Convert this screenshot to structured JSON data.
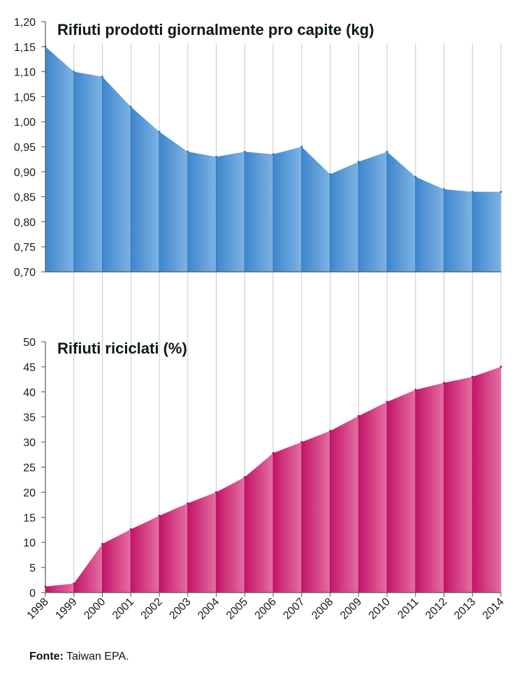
{
  "chart_data": [
    {
      "type": "area",
      "title": "Rifiuti prodotti giornalmente pro capite (kg)",
      "x": [
        "1998",
        "1999",
        "2000",
        "2001",
        "2002",
        "2003",
        "2004",
        "2005",
        "2006",
        "2007",
        "2008",
        "2009",
        "2010",
        "2011",
        "2012",
        "2013",
        "2014"
      ],
      "values": [
        1.15,
        1.1,
        1.09,
        1.03,
        0.98,
        0.94,
        0.93,
        0.94,
        0.935,
        0.95,
        0.895,
        0.92,
        0.94,
        0.89,
        0.865,
        0.86,
        0.86
      ],
      "ylim": [
        0.7,
        1.2
      ],
      "yticks": [
        "0,70",
        "0,75",
        "0,80",
        "0,85",
        "0,90",
        "0,95",
        "1,00",
        "1,05",
        "1,10",
        "1,15",
        "1,20"
      ],
      "color": "#4a90d0",
      "grid": "vertical"
    },
    {
      "type": "area",
      "title": "Rifiuti riciclati (%)",
      "x": [
        "1998",
        "1999",
        "2000",
        "2001",
        "2002",
        "2003",
        "2004",
        "2005",
        "2006",
        "2007",
        "2008",
        "2009",
        "2010",
        "2011",
        "2012",
        "2013",
        "2014"
      ],
      "values": [
        1.2,
        1.8,
        9.7,
        12.6,
        15.3,
        17.8,
        20.0,
        23.0,
        27.8,
        30.0,
        32.2,
        35.2,
        38.0,
        40.4,
        41.8,
        43.0,
        45.0
      ],
      "ylim": [
        0,
        50
      ],
      "yticks": [
        "0",
        "5",
        "10",
        "15",
        "20",
        "25",
        "30",
        "35",
        "40",
        "45",
        "50"
      ],
      "color": "#c81e6e",
      "grid": "vertical"
    }
  ],
  "source": {
    "label": "Fonte:",
    "text": "Taiwan EPA."
  }
}
